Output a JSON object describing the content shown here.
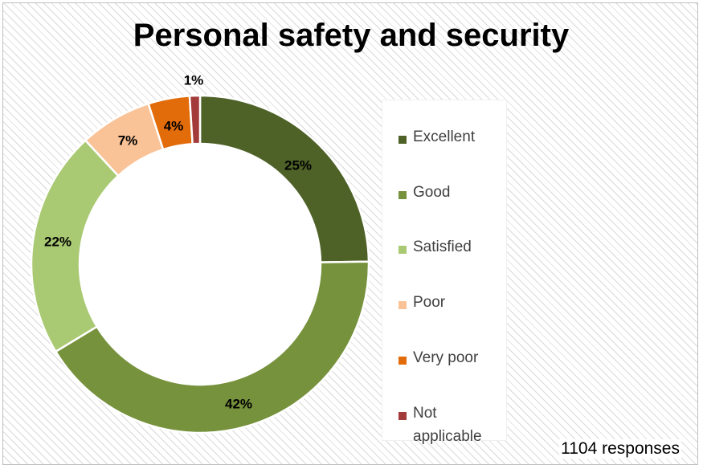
{
  "chart_data": {
    "type": "pie",
    "title": "Personal safety and security",
    "categories": [
      "Excellent",
      "Good",
      "Satisfied",
      "Poor",
      "Very poor",
      "Not applicable"
    ],
    "values": [
      25,
      42,
      22,
      7,
      4,
      1
    ],
    "value_labels": [
      "25%",
      "42%",
      "22%",
      "7%",
      "4%",
      "1%"
    ],
    "colors": [
      "#4e6228",
      "#76923c",
      "#a9c972",
      "#f9c297",
      "#e26b0a",
      "#a33b3b"
    ],
    "legend_position": "right",
    "donut": true
  },
  "legend": {
    "items": [
      {
        "label": "Excellent",
        "color": "#4e6228"
      },
      {
        "label": "Good",
        "color": "#76923c"
      },
      {
        "label": "Satisfied",
        "color": "#a9c972"
      },
      {
        "label": "Poor",
        "color": "#f9c297"
      },
      {
        "label": "Very poor",
        "color": "#e26b0a"
      },
      {
        "label": "Not applicable",
        "color": "#a33b3b"
      }
    ]
  },
  "note": "1104 responses"
}
